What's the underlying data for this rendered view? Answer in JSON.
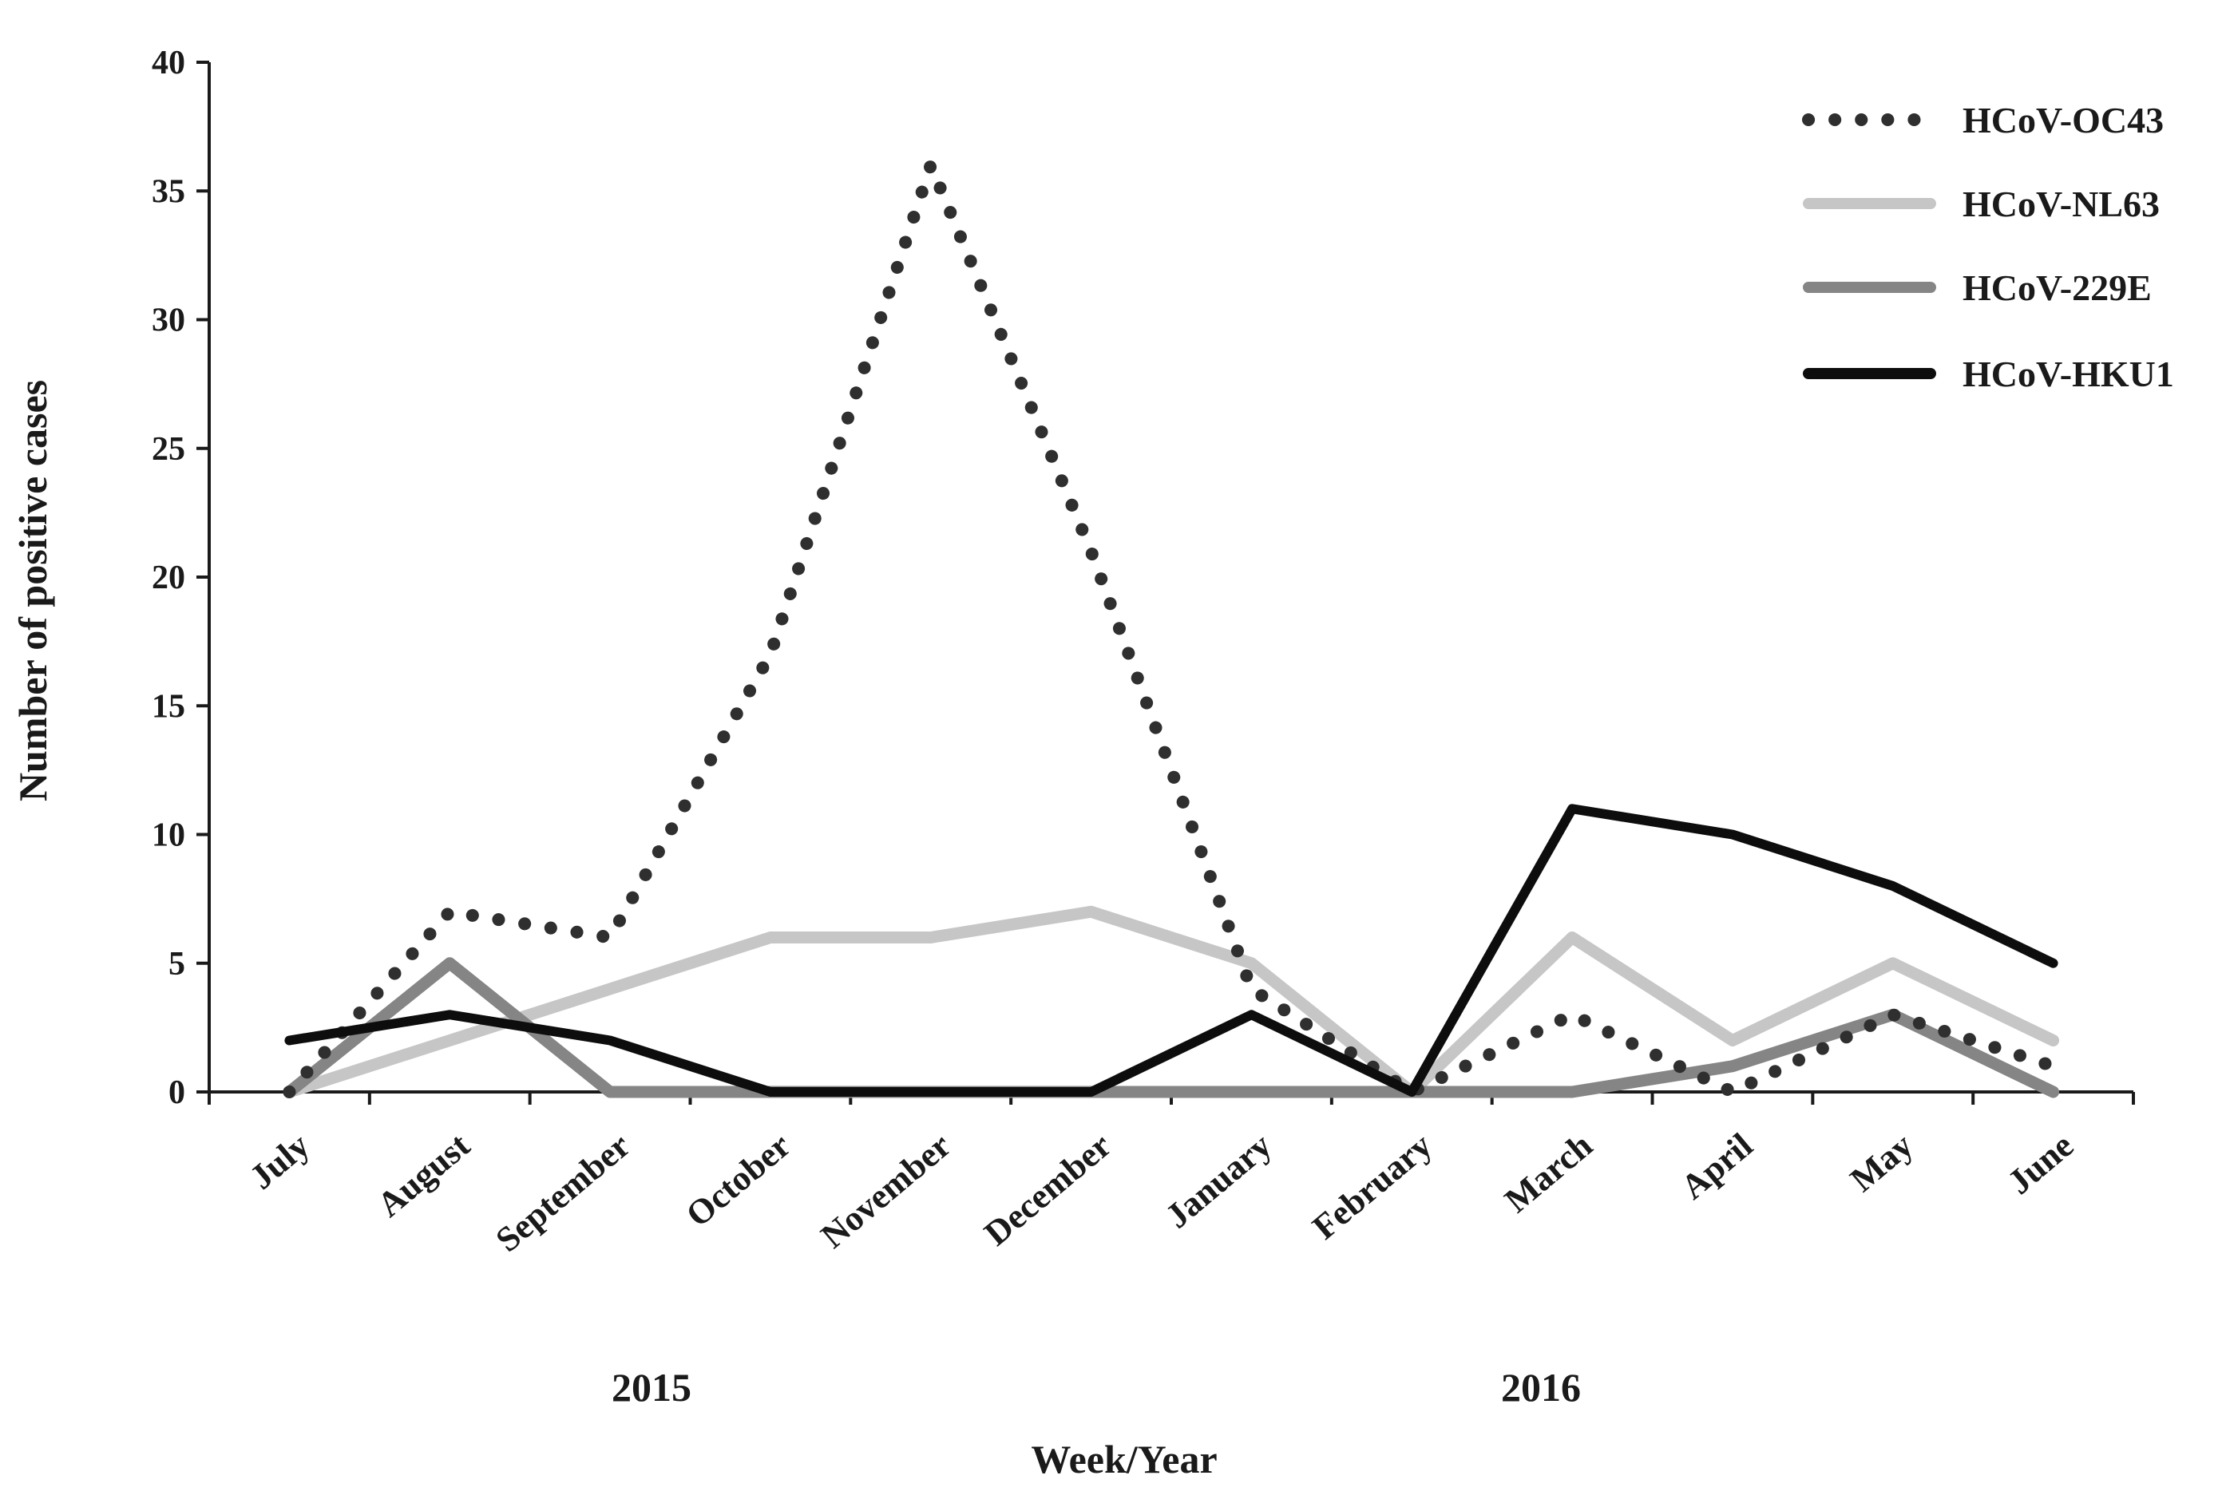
{
  "chart_data": {
    "type": "line",
    "xlabel": "Week/Year",
    "ylabel": "Number of positive cases",
    "ylim": [
      0,
      40
    ],
    "yticks": [
      "0",
      "5",
      "10",
      "15",
      "20",
      "25",
      "30",
      "35",
      "40"
    ],
    "categories": [
      "July",
      "August",
      "September",
      "October",
      "November",
      "December",
      "January",
      "February",
      "March",
      "April",
      "May",
      "June"
    ],
    "years": [
      "2015",
      "2016"
    ],
    "legend_position": "top-right",
    "grid": false,
    "series": [
      {
        "name": "HCoV-OC43",
        "style": "dotted",
        "color": "#2f2f2f",
        "values": [
          0,
          7,
          6,
          17,
          36,
          21,
          4,
          0,
          3,
          0,
          3,
          1
        ]
      },
      {
        "name": "HCoV-NL63",
        "style": "solid",
        "color": "#c6c6c6",
        "values": [
          0,
          2,
          4,
          6,
          6,
          7,
          5,
          0,
          6,
          2,
          5,
          2
        ]
      },
      {
        "name": "HCoV-229E",
        "style": "solid",
        "color": "#858585",
        "values": [
          0,
          5,
          0,
          0,
          0,
          0,
          0,
          0,
          0,
          1,
          3,
          0
        ]
      },
      {
        "name": "HCoV-HKU1",
        "style": "solid",
        "color": "#0d0d0d",
        "values": [
          2,
          3,
          2,
          0,
          0,
          0,
          3,
          0,
          11,
          10,
          8,
          5
        ]
      }
    ]
  }
}
